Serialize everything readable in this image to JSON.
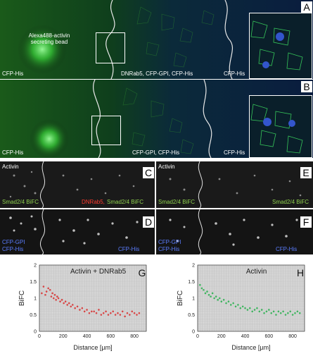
{
  "panels": {
    "A": {
      "letter": "A",
      "label_source": "Alexa488-activin secreting bead",
      "label_left": "CFP-His",
      "label_mid": "DNRab5, CFP-GPI, CFP-His",
      "label_right": "CFP-His"
    },
    "B": {
      "letter": "B",
      "label_left": "CFP-His",
      "label_mid": "CFP-GPI, CFP-His",
      "label_right": "CFP-His"
    },
    "C": {
      "letter": "C",
      "label_top": "Activin",
      "label_green": "Smad2/4 BiFC",
      "label_red": "DNRab5,",
      "label_green2": "Smad2/4 BiFC"
    },
    "D": {
      "letter": "D",
      "label_left_1": "CFP-GPI",
      "label_left_2": "CFP-His",
      "label_right": "CFP-His"
    },
    "E": {
      "letter": "E",
      "label_top": "Activin",
      "label_green": "Smad2/4 BiFC",
      "label_green2": "Smad2/4 BiFC"
    },
    "F": {
      "letter": "F",
      "label_left_1": "CFP-GPI",
      "label_left_2": "CFP-His",
      "label_right": "CFP-His"
    }
  },
  "colors": {
    "green_channel": "#35c435",
    "blue_channel": "#3344cc",
    "plot_bg": "#d8d8d8",
    "red_points": "#d64545",
    "green_points": "#3fb35f"
  },
  "chart_data": [
    {
      "type": "scatter",
      "letter": "G",
      "title": "Activin + DNRab5",
      "xlabel": "Distance [µm]",
      "ylabel": "BiFC",
      "xlim": [
        0,
        900
      ],
      "ylim": [
        0,
        2
      ],
      "xticks": [
        0,
        200,
        400,
        600,
        800
      ],
      "yticks": [
        0,
        0.5,
        1,
        1.5,
        2
      ],
      "grid": true,
      "series": [
        {
          "color": "#d64545",
          "x": [
            20,
            35,
            50,
            60,
            75,
            90,
            100,
            110,
            120,
            130,
            140,
            150,
            160,
            175,
            190,
            205,
            220,
            235,
            250,
            265,
            280,
            300,
            320,
            340,
            360,
            380,
            400,
            420,
            440,
            460,
            480,
            500,
            520,
            540,
            560,
            580,
            600,
            620,
            640,
            660,
            680,
            700,
            720,
            740,
            760,
            780,
            800,
            820,
            840
          ],
          "y": [
            1.15,
            1.35,
            1.1,
            1.2,
            1.3,
            1.25,
            1.05,
            1.15,
            1.0,
            1.1,
            0.95,
            1.05,
            1.0,
            0.9,
            0.95,
            0.85,
            0.9,
            0.8,
            0.85,
            0.75,
            0.8,
            0.7,
            0.75,
            0.65,
            0.7,
            0.6,
            0.65,
            0.55,
            0.6,
            0.6,
            0.55,
            0.65,
            0.5,
            0.55,
            0.6,
            0.5,
            0.55,
            0.6,
            0.5,
            0.55,
            0.5,
            0.6,
            0.45,
            0.55,
            0.5,
            0.6,
            0.55,
            0.5,
            0.55
          ]
        }
      ]
    },
    {
      "type": "scatter",
      "letter": "H",
      "title": "Activin",
      "xlabel": "Distance [µm]",
      "ylabel": "BiFC",
      "xlim": [
        0,
        900
      ],
      "ylim": [
        0,
        2
      ],
      "xticks": [
        0,
        200,
        400,
        600,
        800
      ],
      "yticks": [
        0,
        0.5,
        1,
        1.5,
        2
      ],
      "grid": true,
      "series": [
        {
          "color": "#3fb35f",
          "x": [
            20,
            35,
            50,
            65,
            80,
            95,
            110,
            125,
            140,
            155,
            170,
            185,
            200,
            220,
            240,
            260,
            280,
            300,
            320,
            340,
            360,
            380,
            400,
            420,
            440,
            460,
            480,
            500,
            520,
            540,
            560,
            580,
            600,
            620,
            640,
            660,
            680,
            700,
            720,
            740,
            760,
            780,
            800,
            820,
            840,
            860
          ],
          "y": [
            1.4,
            1.3,
            1.25,
            1.15,
            1.2,
            1.1,
            1.05,
            1.15,
            1.0,
            1.05,
            0.95,
            1.0,
            0.9,
            0.95,
            0.85,
            0.9,
            0.8,
            0.85,
            0.75,
            0.8,
            0.7,
            0.75,
            0.7,
            0.65,
            0.7,
            0.6,
            0.65,
            0.7,
            0.6,
            0.65,
            0.55,
            0.6,
            0.65,
            0.55,
            0.6,
            0.5,
            0.6,
            0.55,
            0.6,
            0.5,
            0.55,
            0.6,
            0.5,
            0.55,
            0.6,
            0.55
          ]
        }
      ]
    }
  ]
}
